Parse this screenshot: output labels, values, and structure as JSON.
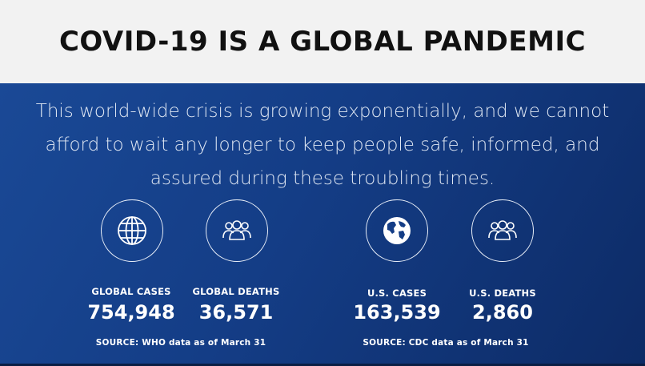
{
  "title": "COVID-19 IS A GLOBAL PANDEMIC",
  "intro": "This world-wide crisis is growing exponentially, and we cannot afford to wait any longer to keep people safe, informed, and assured during these troubling times.",
  "stats": {
    "global_cases": {
      "icon": "globe-grid-icon",
      "label": "GLOBAL CASES",
      "value": "754,948"
    },
    "global_deaths": {
      "icon": "people-group-icon",
      "label": "GLOBAL DEATHS",
      "value": "36,571"
    },
    "us_cases": {
      "icon": "earth-map-icon",
      "label": "U.S. CASES",
      "value": "163,539"
    },
    "us_deaths": {
      "icon": "people-group-icon",
      "label": "U.S. DEATHS",
      "value": "2,860"
    }
  },
  "sources": {
    "global": "SOURCE: WHO data as of March 31",
    "us": "SOURCE: CDC data as of March 31"
  },
  "colors": {
    "header_bg": "#f2f2f2",
    "panel_bg": "#143d86",
    "text": "#ffffff"
  }
}
